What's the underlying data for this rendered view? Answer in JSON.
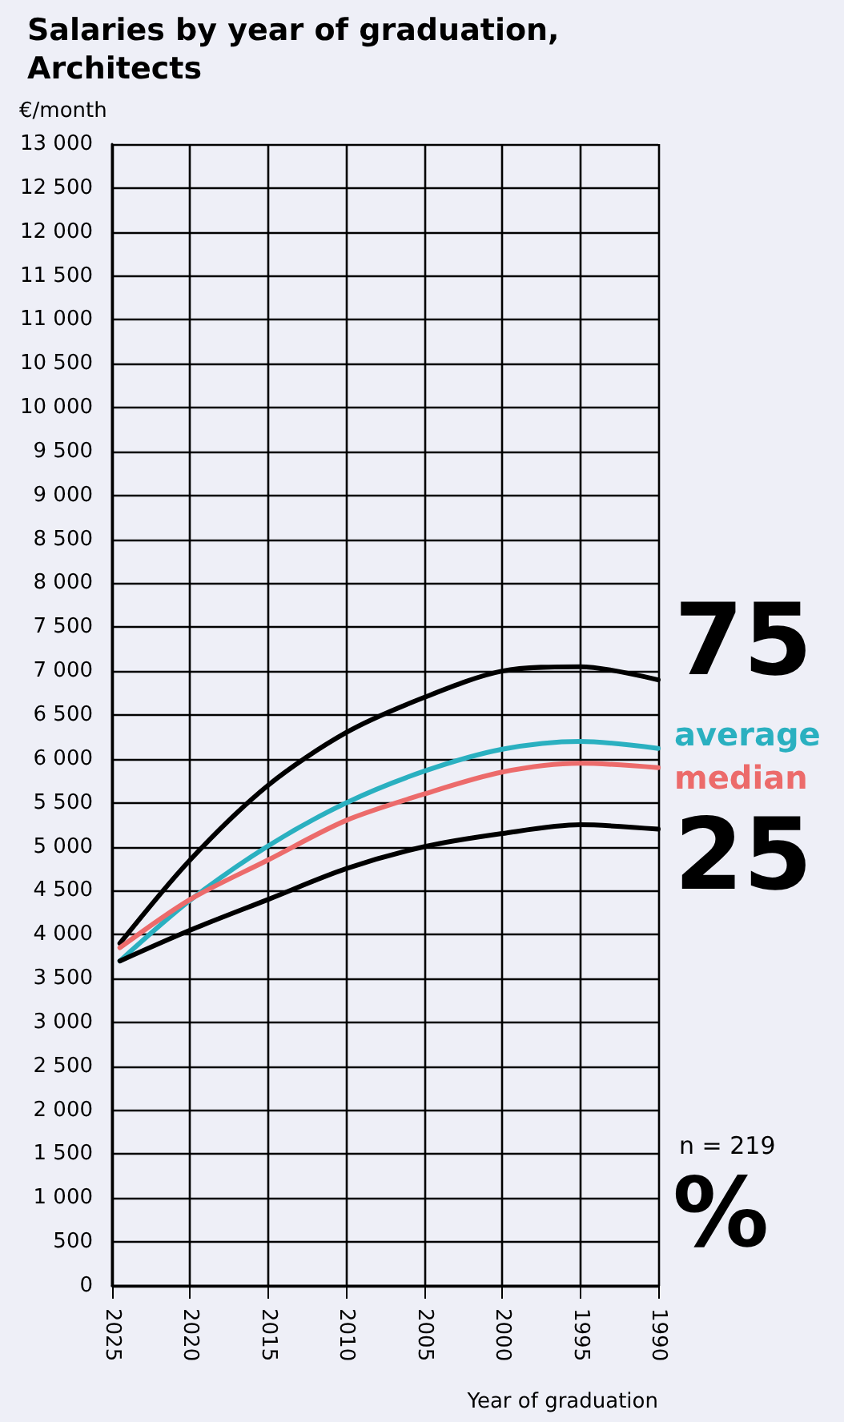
{
  "chart_data": {
    "type": "line",
    "title": "Salaries by year of graduation,\nArchitects",
    "ylabel": "€/month",
    "xlabel": "Year of graduation",
    "x": [
      2024.5,
      2020,
      2015,
      2010,
      2005,
      2000,
      1995,
      1990
    ],
    "series": [
      {
        "name": "75",
        "color": "#000000",
        "values": [
          3900,
          4850,
          5700,
          6300,
          6700,
          7000,
          7050,
          6900
        ]
      },
      {
        "name": "average",
        "color": "#2ab0c0",
        "values": [
          3700,
          4390,
          5010,
          5500,
          5860,
          6110,
          6200,
          6120
        ]
      },
      {
        "name": "median",
        "color": "#ec6b6b",
        "values": [
          3850,
          4400,
          4850,
          5300,
          5600,
          5850,
          5950,
          5900
        ]
      },
      {
        "name": "25",
        "color": "#000000",
        "values": [
          3700,
          4050,
          4400,
          4750,
          5000,
          5150,
          5250,
          5200
        ]
      }
    ],
    "xlim": [
      2025,
      1990
    ],
    "xticks": [
      2025,
      2020,
      2015,
      2010,
      2005,
      2000,
      1995,
      1990
    ],
    "ylim": [
      0,
      13000
    ],
    "yticks": [
      0,
      500,
      {
        "value": 1000,
        "label": "1 000"
      },
      {
        "value": 1500,
        "label": "1 500"
      },
      {
        "value": 2000,
        "label": "2 000"
      },
      {
        "value": 2500,
        "label": "2 500"
      },
      {
        "value": 3000,
        "label": "3 000"
      },
      {
        "value": 3500,
        "label": "3 500"
      },
      {
        "value": 4000,
        "label": "4 000"
      },
      {
        "value": 4500,
        "label": "4 500"
      },
      {
        "value": 5000,
        "label": "5 000"
      },
      {
        "value": 5500,
        "label": "5 500"
      },
      {
        "value": 6000,
        "label": "6 000"
      },
      {
        "value": 6500,
        "label": "6 500"
      },
      {
        "value": 7000,
        "label": "7 000"
      },
      {
        "value": 7500,
        "label": "7 500"
      },
      {
        "value": 8000,
        "label": "8 000"
      },
      {
        "value": 8500,
        "label": "8 500"
      },
      {
        "value": 9000,
        "label": "9 000"
      },
      {
        "value": 9500,
        "label": "9 500"
      },
      {
        "value": 10000,
        "label": "10 000"
      },
      {
        "value": 10500,
        "label": "10 500"
      },
      {
        "value": 11000,
        "label": "11 000"
      },
      {
        "value": 11500,
        "label": "11 500"
      },
      {
        "value": 12000,
        "label": "12 000"
      },
      {
        "value": 12500,
        "label": "12 500"
      },
      {
        "value": 13000,
        "label": "13 000"
      }
    ],
    "annotations": [
      "n = 219",
      "%"
    ],
    "grid": true,
    "legend": false,
    "marker": "none",
    "line_style": "solid"
  }
}
